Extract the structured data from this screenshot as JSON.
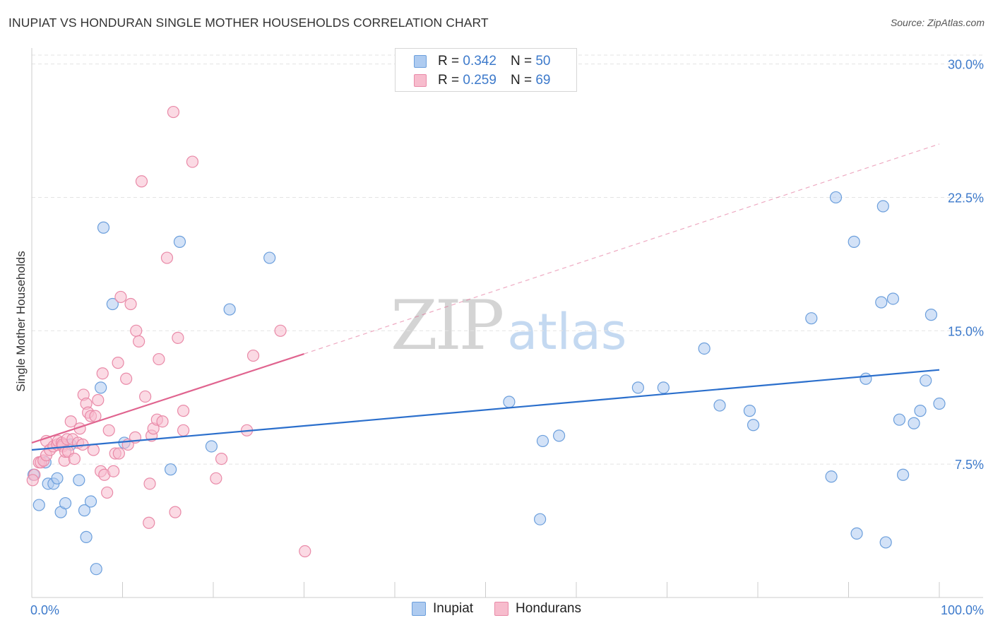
{
  "header": {
    "title": "INUPIAT VS HONDURAN SINGLE MOTHER HOUSEHOLDS CORRELATION CHART",
    "source": "Source: ZipAtlas.com"
  },
  "watermark": {
    "zip": "ZIP",
    "atlas": "atlas"
  },
  "colors": {
    "inupiat_fill": "#aecbf0",
    "inupiat_stroke": "#6c9fdc",
    "inupiat_line": "#2b6fcc",
    "honduran_fill": "#f7bccd",
    "honduran_stroke": "#e98aa8",
    "honduran_line": "#e0648f",
    "axis_text": "#3d7acb",
    "grid": "#e3e3e3"
  },
  "legend_top": {
    "rows": [
      {
        "r_label": "R = ",
        "r_value": "0.342",
        "n_label": "N = ",
        "n_value": "50"
      },
      {
        "r_label": "R = ",
        "r_value": "0.259",
        "n_label": "N = ",
        "n_value": "69"
      }
    ]
  },
  "chart_data": {
    "type": "scatter",
    "title": "INUPIAT VS HONDURAN SINGLE MOTHER HOUSEHOLDS CORRELATION CHART",
    "ylabel": "Single Mother Households",
    "xlabel": "",
    "xlim": [
      0,
      100
    ],
    "ylim": [
      0,
      30.5
    ],
    "x_tick_labels": [
      "0.0%",
      "100.0%"
    ],
    "y_ticks": [
      7.5,
      15.0,
      22.5,
      30.0
    ],
    "y_tick_labels": [
      "7.5%",
      "15.0%",
      "22.5%",
      "30.0%"
    ],
    "legend": [
      "Inupiat",
      "Hondurans"
    ],
    "series": [
      {
        "name": "Inupiat",
        "stats": {
          "R": 0.342,
          "N": 50
        },
        "trend": {
          "x": [
            0,
            100
          ],
          "y": [
            8.3,
            12.8
          ],
          "style": "solid"
        },
        "points": [
          [
            0.2,
            6.9
          ],
          [
            0.8,
            5.2
          ],
          [
            1.5,
            7.6
          ],
          [
            1.8,
            6.4
          ],
          [
            2.4,
            6.4
          ],
          [
            2.8,
            6.7
          ],
          [
            3.2,
            4.8
          ],
          [
            3.7,
            5.3
          ],
          [
            4.3,
            8.6
          ],
          [
            5.2,
            6.6
          ],
          [
            5.8,
            4.9
          ],
          [
            6.0,
            3.4
          ],
          [
            6.5,
            5.4
          ],
          [
            7.1,
            1.6
          ],
          [
            7.6,
            11.8
          ],
          [
            7.9,
            20.8
          ],
          [
            8.9,
            16.5
          ],
          [
            10.2,
            8.7
          ],
          [
            15.3,
            7.2
          ],
          [
            16.3,
            20.0
          ],
          [
            19.8,
            8.5
          ],
          [
            21.8,
            16.2
          ],
          [
            26.2,
            19.1
          ],
          [
            52.6,
            11.0
          ],
          [
            56.0,
            4.4
          ],
          [
            56.3,
            8.8
          ],
          [
            58.1,
            9.1
          ],
          [
            66.8,
            11.8
          ],
          [
            69.6,
            11.8
          ],
          [
            74.1,
            14.0
          ],
          [
            75.8,
            10.8
          ],
          [
            79.1,
            10.5
          ],
          [
            79.5,
            9.7
          ],
          [
            85.9,
            15.7
          ],
          [
            88.1,
            6.8
          ],
          [
            88.6,
            22.5
          ],
          [
            90.6,
            20.0
          ],
          [
            90.9,
            3.6
          ],
          [
            91.9,
            12.3
          ],
          [
            93.6,
            16.6
          ],
          [
            93.8,
            22.0
          ],
          [
            94.1,
            3.1
          ],
          [
            94.9,
            16.8
          ],
          [
            95.6,
            10.0
          ],
          [
            96.0,
            6.9
          ],
          [
            97.2,
            9.8
          ],
          [
            97.9,
            10.5
          ],
          [
            98.5,
            12.2
          ],
          [
            99.1,
            15.9
          ],
          [
            100.0,
            10.9
          ]
        ]
      },
      {
        "name": "Hondurans",
        "stats": {
          "R": 0.259,
          "N": 69
        },
        "trend": {
          "x": [
            0,
            30
          ],
          "y": [
            8.7,
            13.7
          ],
          "style": "solid",
          "extension": {
            "x": [
              30,
              100
            ],
            "y": [
              13.7,
              25.5
            ],
            "style": "dashed"
          }
        },
        "points": [
          [
            0.3,
            6.9
          ],
          [
            0.8,
            7.6
          ],
          [
            1.0,
            7.6
          ],
          [
            1.3,
            7.7
          ],
          [
            1.6,
            8.0
          ],
          [
            1.6,
            8.8
          ],
          [
            2.0,
            8.3
          ],
          [
            2.4,
            8.5
          ],
          [
            2.8,
            8.6
          ],
          [
            2.9,
            8.8
          ],
          [
            3.3,
            8.7
          ],
          [
            3.4,
            8.5
          ],
          [
            3.4,
            8.6
          ],
          [
            3.6,
            7.7
          ],
          [
            3.7,
            8.2
          ],
          [
            3.9,
            8.9
          ],
          [
            4.0,
            8.2
          ],
          [
            4.3,
            9.9
          ],
          [
            4.5,
            8.9
          ],
          [
            4.7,
            7.8
          ],
          [
            5.1,
            8.7
          ],
          [
            5.3,
            9.5
          ],
          [
            5.6,
            8.6
          ],
          [
            5.7,
            11.4
          ],
          [
            6.0,
            10.9
          ],
          [
            6.2,
            10.4
          ],
          [
            6.5,
            10.2
          ],
          [
            6.8,
            8.3
          ],
          [
            7.0,
            10.2
          ],
          [
            7.3,
            11.1
          ],
          [
            7.6,
            7.1
          ],
          [
            7.8,
            12.6
          ],
          [
            8.0,
            6.9
          ],
          [
            8.3,
            5.9
          ],
          [
            8.5,
            9.4
          ],
          [
            9.0,
            7.1
          ],
          [
            9.2,
            8.1
          ],
          [
            9.5,
            13.2
          ],
          [
            9.6,
            8.1
          ],
          [
            9.8,
            16.9
          ],
          [
            10.4,
            12.3
          ],
          [
            10.6,
            8.6
          ],
          [
            10.9,
            16.5
          ],
          [
            11.4,
            9.0
          ],
          [
            11.5,
            15.0
          ],
          [
            11.8,
            14.4
          ],
          [
            12.1,
            23.4
          ],
          [
            12.5,
            11.3
          ],
          [
            12.9,
            4.2
          ],
          [
            13.0,
            6.4
          ],
          [
            13.2,
            9.1
          ],
          [
            13.4,
            9.5
          ],
          [
            13.8,
            10.0
          ],
          [
            14.0,
            13.4
          ],
          [
            14.4,
            9.9
          ],
          [
            14.9,
            19.1
          ],
          [
            15.6,
            27.3
          ],
          [
            15.8,
            4.8
          ],
          [
            16.1,
            14.6
          ],
          [
            16.7,
            10.5
          ],
          [
            16.7,
            9.4
          ],
          [
            17.7,
            24.5
          ],
          [
            20.3,
            6.7
          ],
          [
            20.9,
            7.8
          ],
          [
            23.7,
            9.4
          ],
          [
            24.4,
            13.6
          ],
          [
            27.4,
            15.0
          ],
          [
            30.1,
            2.6
          ],
          [
            0.1,
            6.6
          ]
        ]
      }
    ]
  }
}
